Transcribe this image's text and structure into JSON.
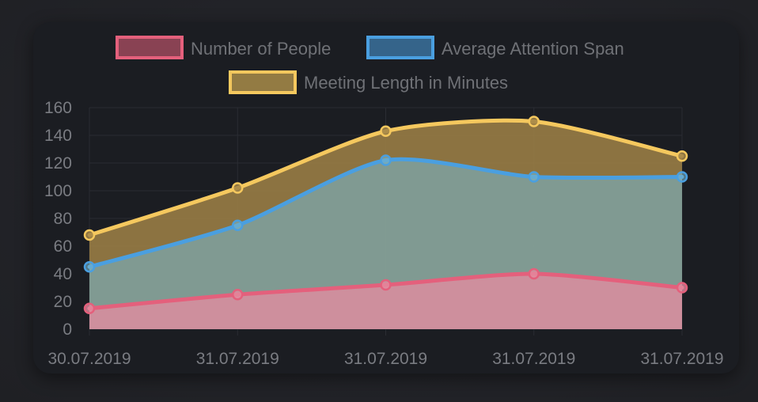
{
  "chart_data": {
    "type": "area",
    "stacked": false,
    "categories": [
      "30.07.2019",
      "31.07.2019",
      "31.07.2019",
      "31.07.2019",
      "31.07.2019"
    ],
    "series": [
      {
        "name": "Number of People",
        "values": [
          15,
          25,
          32,
          40,
          30
        ],
        "color": "#e4607c",
        "fill": "rgba(228, 140, 160, 0.78)"
      },
      {
        "name": "Average Attention Span",
        "values": [
          45,
          75,
          122,
          110,
          110
        ],
        "color": "#4a9fe0",
        "fill": "rgba(120, 180, 200, 0.60)"
      },
      {
        "name": "Meeting Length in Minutes",
        "values": [
          68,
          102,
          143,
          150,
          125
        ],
        "color": "#f5c85e",
        "fill": "rgba(160, 130, 70, 0.85)"
      }
    ],
    "y_ticks": [
      "0",
      "20",
      "40",
      "60",
      "80",
      "100",
      "120",
      "140",
      "160"
    ],
    "ylim": [
      0,
      160
    ],
    "grid": true,
    "legend_position": "top"
  }
}
